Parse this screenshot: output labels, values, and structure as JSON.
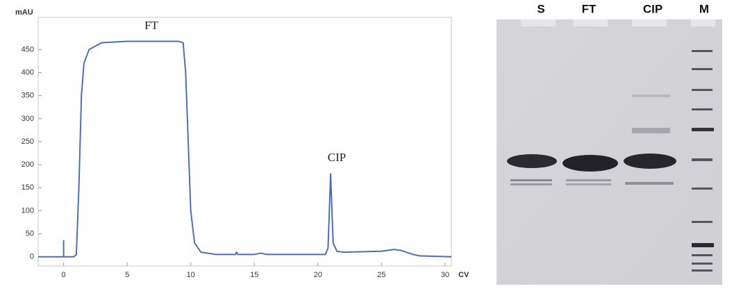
{
  "chart_data": {
    "type": "line",
    "y_label": "mAU",
    "x_label": "CV",
    "annotations": [
      "FT",
      "CIP"
    ],
    "x": [
      -2,
      0,
      0,
      0,
      0.8,
      1.0,
      1.2,
      1.4,
      1.6,
      2,
      3,
      5,
      9,
      9.4,
      9.6,
      9.8,
      10,
      10.3,
      10.8,
      12,
      13.5,
      13.6,
      13.7,
      15,
      15.5,
      16,
      20.6,
      20.8,
      21,
      21.2,
      21.5,
      22,
      25,
      26,
      26.5,
      27.5,
      28,
      30.5
    ],
    "series": [
      {
        "color": "#4a6fb5",
        "values": [
          0,
          0,
          35,
          0,
          0,
          5,
          150,
          350,
          420,
          450,
          465,
          468,
          468,
          465,
          400,
          250,
          100,
          30,
          10,
          5,
          5,
          10,
          5,
          5,
          8,
          5,
          5,
          20,
          180,
          30,
          12,
          10,
          12,
          16,
          14,
          5,
          2,
          0
        ]
      }
    ],
    "xlim": [
      -2,
      30.5
    ],
    "ylim": [
      -20,
      520
    ],
    "xticks": [
      0,
      5,
      10,
      15,
      20,
      25,
      30
    ],
    "yticks": [
      0,
      50,
      100,
      150,
      200,
      250,
      300,
      350,
      400,
      450
    ],
    "grid": false
  },
  "gel": {
    "lanes": [
      "S",
      "FT",
      "CIP",
      "M"
    ]
  }
}
